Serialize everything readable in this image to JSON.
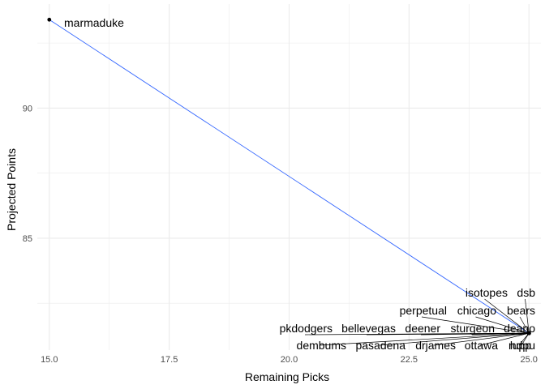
{
  "chart_data": {
    "type": "scatter",
    "title": "",
    "xlabel": "Remaining Picks",
    "ylabel": "Projected Points",
    "xlim": [
      14.75,
      25.25
    ],
    "ylim": [
      80.7,
      94.0
    ],
    "x_ticks": [
      15.0,
      17.5,
      20.0,
      22.5,
      25.0
    ],
    "x_tick_labels": [
      "15.0",
      "17.5",
      "20.0",
      "22.5",
      "25.0"
    ],
    "y_ticks": [
      85,
      90
    ],
    "y_tick_labels": [
      "85",
      "90"
    ],
    "grid": true,
    "legend": "none",
    "trend_line": {
      "type": "linear",
      "color": "#3366ff",
      "x": [
        15.0,
        25.0
      ],
      "y": [
        93.4,
        81.35
      ]
    },
    "points": [
      {
        "label": "marmaduke",
        "x": 15.0,
        "y": 93.4
      },
      {
        "label": "isotopes",
        "x": 25.0,
        "y": 81.35
      },
      {
        "label": "dsb",
        "x": 25.0,
        "y": 81.35
      },
      {
        "label": "perpetual",
        "x": 25.0,
        "y": 81.35
      },
      {
        "label": "chicago",
        "x": 25.0,
        "y": 81.35
      },
      {
        "label": "bears",
        "x": 25.0,
        "y": 81.35
      },
      {
        "label": "pkdodgers",
        "x": 25.0,
        "y": 81.35
      },
      {
        "label": "bellevegas",
        "x": 25.0,
        "y": 81.35
      },
      {
        "label": "deener",
        "x": 25.0,
        "y": 81.35
      },
      {
        "label": "sturgeon",
        "x": 25.0,
        "y": 81.35
      },
      {
        "label": "deano",
        "x": 25.0,
        "y": 81.35
      },
      {
        "label": "dembums",
        "x": 25.0,
        "y": 81.35
      },
      {
        "label": "pasadena",
        "x": 25.0,
        "y": 81.35
      },
      {
        "label": "drjames",
        "x": 25.0,
        "y": 81.35
      },
      {
        "label": "ottawa",
        "x": 25.0,
        "y": 81.35
      },
      {
        "label": "hdpu",
        "x": 25.0,
        "y": 81.35
      },
      {
        "label": "rupp",
        "x": 25.0,
        "y": 81.35
      }
    ],
    "colors": {
      "grid": "#ebebeb",
      "text": "#4d4d4d",
      "point": "#000000"
    }
  }
}
